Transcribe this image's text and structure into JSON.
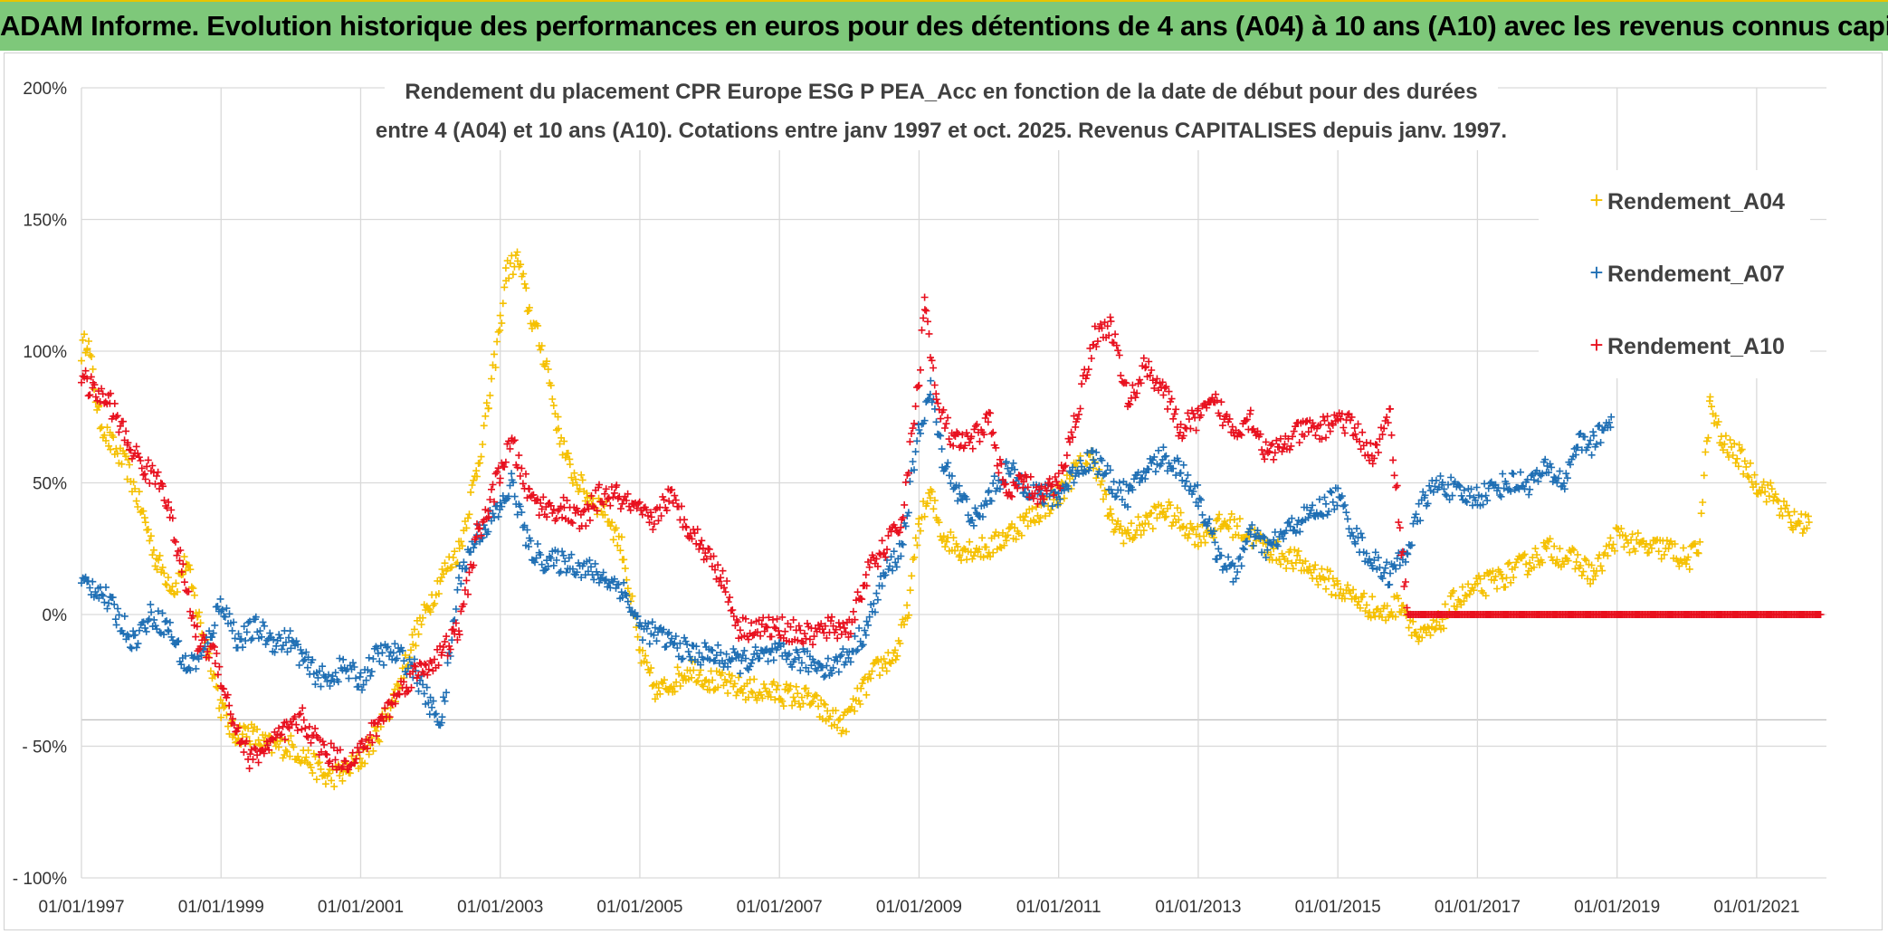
{
  "banner": {
    "title": "ADAM Informe. Evolution historique des performances en euros pour des détentions de 4 ans (A04) à 10 ans (A10) avec les revenus connus capitalisés"
  },
  "colors": {
    "banner_bg": "#7ec87a",
    "A04": "#f5c000",
    "A07": "#1f6fb4",
    "A10": "#e8101e",
    "grid": "#d9d9d9"
  },
  "chart_data": {
    "type": "scatter",
    "title_line1": "Rendement du placement CPR Europe ESG P PEA_Acc en fonction de la date de début pour des durées",
    "title_line2": "entre 4 (A04) et 10 ans (A10). Cotations entre janv 1997 et oct. 2025. Revenus CAPITALISES depuis janv. 1997.",
    "xlabel": "",
    "ylabel": "",
    "x_range": [
      "1997-01-01",
      "2022-01-01"
    ],
    "ylim": [
      -100,
      200
    ],
    "y_ticks": [
      "200%",
      "150%",
      "100%",
      "50%",
      "0%",
      "- 50%",
      "- 100%"
    ],
    "x_ticks": [
      "01/01/1997",
      "01/01/1999",
      "01/01/2001",
      "01/01/2003",
      "01/01/2005",
      "01/01/2007",
      "01/01/2009",
      "01/01/2011",
      "01/01/2013",
      "01/01/2015",
      "01/01/2017",
      "01/01/2019",
      "01/01/2021"
    ],
    "grid": true,
    "legend_position": "top-right",
    "marker": "+",
    "series": [
      {
        "name": "Rendement_A04",
        "color": "#f5c000",
        "points": [
          [
            "1997-01-01",
            100
          ],
          [
            "1997-02-01",
            105
          ],
          [
            "1997-04-01",
            75
          ],
          [
            "1997-06-01",
            65
          ],
          [
            "1997-09-01",
            55
          ],
          [
            "1997-12-01",
            35
          ],
          [
            "1998-02-01",
            20
          ],
          [
            "1998-05-01",
            10
          ],
          [
            "1998-07-01",
            20
          ],
          [
            "1998-09-01",
            0
          ],
          [
            "1998-11-01",
            -15
          ],
          [
            "1999-01-01",
            -35
          ],
          [
            "1999-03-01",
            -45
          ],
          [
            "1999-06-01",
            -45
          ],
          [
            "1999-09-01",
            -50
          ],
          [
            "2000-01-01",
            -50
          ],
          [
            "2000-04-01",
            -55
          ],
          [
            "2000-07-01",
            -62
          ],
          [
            "2000-10-01",
            -60
          ],
          [
            "2001-01-01",
            -55
          ],
          [
            "2001-04-01",
            -45
          ],
          [
            "2001-07-01",
            -30
          ],
          [
            "2001-10-01",
            -10
          ],
          [
            "2002-01-01",
            5
          ],
          [
            "2002-03-01",
            15
          ],
          [
            "2002-06-01",
            25
          ],
          [
            "2002-09-01",
            55
          ],
          [
            "2002-11-01",
            80
          ],
          [
            "2003-01-01",
            110
          ],
          [
            "2003-02-01",
            130
          ],
          [
            "2003-04-01",
            135
          ],
          [
            "2003-06-01",
            115
          ],
          [
            "2003-09-01",
            95
          ],
          [
            "2003-11-01",
            70
          ],
          [
            "2004-01-01",
            55
          ],
          [
            "2004-04-01",
            45
          ],
          [
            "2004-07-01",
            40
          ],
          [
            "2004-10-01",
            25
          ],
          [
            "2005-01-01",
            -15
          ],
          [
            "2005-04-01",
            -30
          ],
          [
            "2005-07-01",
            -25
          ],
          [
            "2005-10-01",
            -20
          ],
          [
            "2006-01-01",
            -25
          ],
          [
            "2006-06-01",
            -28
          ],
          [
            "2007-01-01",
            -30
          ],
          [
            "2007-06-01",
            -32
          ],
          [
            "2007-09-01",
            -38
          ],
          [
            "2007-12-01",
            -42
          ],
          [
            "2008-03-01",
            -30
          ],
          [
            "2008-06-01",
            -20
          ],
          [
            "2008-09-01",
            -15
          ],
          [
            "2008-11-01",
            0
          ],
          [
            "2009-01-01",
            35
          ],
          [
            "2009-03-01",
            45
          ],
          [
            "2009-05-01",
            30
          ],
          [
            "2009-08-01",
            25
          ],
          [
            "2010-01-01",
            25
          ],
          [
            "2010-04-01",
            30
          ],
          [
            "2010-07-01",
            35
          ],
          [
            "2010-10-01",
            40
          ],
          [
            "2011-01-01",
            45
          ],
          [
            "2011-04-01",
            55
          ],
          [
            "2011-07-01",
            60
          ],
          [
            "2011-10-01",
            35
          ],
          [
            "2012-01-01",
            30
          ],
          [
            "2012-04-01",
            35
          ],
          [
            "2012-07-01",
            40
          ],
          [
            "2012-10-01",
            35
          ],
          [
            "2013-01-01",
            30
          ],
          [
            "2013-06-01",
            35
          ],
          [
            "2013-10-01",
            30
          ],
          [
            "2014-01-01",
            25
          ],
          [
            "2014-06-01",
            20
          ],
          [
            "2014-10-01",
            15
          ],
          [
            "2015-01-01",
            10
          ],
          [
            "2015-05-01",
            5
          ],
          [
            "2015-09-01",
            0
          ],
          [
            "2015-12-01",
            5
          ],
          [
            "2016-03-01",
            -10
          ],
          [
            "2016-06-01",
            -5
          ],
          [
            "2016-09-01",
            5
          ],
          [
            "2017-01-01",
            10
          ],
          [
            "2017-06-01",
            15
          ],
          [
            "2017-10-01",
            20
          ],
          [
            "2018-01-01",
            25
          ],
          [
            "2018-06-01",
            20
          ],
          [
            "2018-09-01",
            15
          ],
          [
            "2019-01-01",
            30
          ],
          [
            "2019-06-01",
            25
          ],
          [
            "2019-10-01",
            25
          ],
          [
            "2020-01-01",
            20
          ],
          [
            "2020-03-01",
            25
          ],
          [
            "2020-05-01",
            80
          ],
          [
            "2020-07-01",
            65
          ],
          [
            "2020-10-01",
            60
          ],
          [
            "2021-01-01",
            50
          ],
          [
            "2021-04-01",
            45
          ],
          [
            "2021-07-01",
            35
          ],
          [
            "2021-10-01",
            35
          ]
        ]
      },
      {
        "name": "Rendement_A07",
        "color": "#1f6fb4",
        "points": [
          [
            "1997-01-01",
            12
          ],
          [
            "1997-04-01",
            10
          ],
          [
            "1997-07-01",
            0
          ],
          [
            "1997-10-01",
            -10
          ],
          [
            "1998-01-01",
            0
          ],
          [
            "1998-04-01",
            -5
          ],
          [
            "1998-07-01",
            -20
          ],
          [
            "1998-10-01",
            -15
          ],
          [
            "1999-01-01",
            5
          ],
          [
            "1999-04-01",
            -10
          ],
          [
            "1999-07-01",
            -5
          ],
          [
            "1999-10-01",
            -10
          ],
          [
            "2000-01-01",
            -10
          ],
          [
            "2000-04-01",
            -20
          ],
          [
            "2000-07-01",
            -25
          ],
          [
            "2000-10-01",
            -20
          ],
          [
            "2001-01-01",
            -25
          ],
          [
            "2001-04-01",
            -15
          ],
          [
            "2001-07-01",
            -15
          ],
          [
            "2001-10-01",
            -20
          ],
          [
            "2002-01-01",
            -35
          ],
          [
            "2002-03-01",
            -40
          ],
          [
            "2002-06-01",
            15
          ],
          [
            "2002-09-01",
            30
          ],
          [
            "2002-11-01",
            35
          ],
          [
            "2003-01-01",
            40
          ],
          [
            "2003-03-01",
            50
          ],
          [
            "2003-06-01",
            25
          ],
          [
            "2003-09-01",
            20
          ],
          [
            "2004-01-01",
            20
          ],
          [
            "2004-06-01",
            15
          ],
          [
            "2004-10-01",
            10
          ],
          [
            "2005-01-01",
            -5
          ],
          [
            "2005-06-01",
            -10
          ],
          [
            "2005-10-01",
            -15
          ],
          [
            "2006-01-01",
            -15
          ],
          [
            "2006-06-01",
            -18
          ],
          [
            "2007-01-01",
            -15
          ],
          [
            "2007-06-01",
            -18
          ],
          [
            "2007-10-01",
            -20
          ],
          [
            "2008-01-01",
            -15
          ],
          [
            "2008-04-01",
            -5
          ],
          [
            "2008-07-01",
            15
          ],
          [
            "2008-10-01",
            25
          ],
          [
            "2009-01-01",
            70
          ],
          [
            "2009-03-01",
            85
          ],
          [
            "2009-05-01",
            60
          ],
          [
            "2009-08-01",
            45
          ],
          [
            "2009-11-01",
            35
          ],
          [
            "2010-01-01",
            45
          ],
          [
            "2010-04-01",
            55
          ],
          [
            "2010-07-01",
            50
          ],
          [
            "2010-10-01",
            45
          ],
          [
            "2011-01-01",
            45
          ],
          [
            "2011-04-01",
            55
          ],
          [
            "2011-07-01",
            60
          ],
          [
            "2011-10-01",
            50
          ],
          [
            "2012-01-01",
            45
          ],
          [
            "2012-04-01",
            55
          ],
          [
            "2012-07-01",
            60
          ],
          [
            "2012-10-01",
            55
          ],
          [
            "2013-01-01",
            45
          ],
          [
            "2013-04-01",
            25
          ],
          [
            "2013-07-01",
            15
          ],
          [
            "2013-10-01",
            30
          ],
          [
            "2014-01-01",
            25
          ],
          [
            "2014-06-01",
            35
          ],
          [
            "2014-10-01",
            40
          ],
          [
            "2015-01-01",
            45
          ],
          [
            "2015-04-01",
            30
          ],
          [
            "2015-07-01",
            20
          ],
          [
            "2015-10-01",
            15
          ],
          [
            "2016-01-01",
            25
          ],
          [
            "2016-04-01",
            45
          ],
          [
            "2016-07-01",
            50
          ],
          [
            "2016-10-01",
            45
          ],
          [
            "2017-01-01",
            45
          ],
          [
            "2017-06-01",
            50
          ],
          [
            "2017-10-01",
            50
          ],
          [
            "2018-01-01",
            55
          ],
          [
            "2018-04-01",
            50
          ],
          [
            "2018-06-01",
            65
          ],
          [
            "2018-09-01",
            65
          ],
          [
            "2018-12-01",
            75
          ]
        ]
      },
      {
        "name": "Rendement_A10",
        "color": "#e8101e",
        "points": [
          [
            "1997-01-01",
            90
          ],
          [
            "1997-03-01",
            85
          ],
          [
            "1997-06-01",
            80
          ],
          [
            "1997-09-01",
            65
          ],
          [
            "1997-12-01",
            55
          ],
          [
            "1998-03-01",
            50
          ],
          [
            "1998-06-01",
            20
          ],
          [
            "1998-09-01",
            -10
          ],
          [
            "1998-12-01",
            -15
          ],
          [
            "1999-03-01",
            -40
          ],
          [
            "1999-06-01",
            -55
          ],
          [
            "1999-09-01",
            -50
          ],
          [
            "1999-12-01",
            -45
          ],
          [
            "2000-03-01",
            -40
          ],
          [
            "2000-06-01",
            -50
          ],
          [
            "2000-09-01",
            -55
          ],
          [
            "2000-12-01",
            -55
          ],
          [
            "2001-03-01",
            -45
          ],
          [
            "2001-06-01",
            -35
          ],
          [
            "2001-09-01",
            -25
          ],
          [
            "2001-12-01",
            -20
          ],
          [
            "2002-03-01",
            -15
          ],
          [
            "2002-06-01",
            -5
          ],
          [
            "2002-09-01",
            30
          ],
          [
            "2002-11-01",
            40
          ],
          [
            "2003-01-01",
            55
          ],
          [
            "2003-03-01",
            65
          ],
          [
            "2003-06-01",
            45
          ],
          [
            "2003-09-01",
            40
          ],
          [
            "2003-12-01",
            40
          ],
          [
            "2004-03-01",
            35
          ],
          [
            "2004-06-01",
            45
          ],
          [
            "2004-09-01",
            45
          ],
          [
            "2004-12-01",
            40
          ],
          [
            "2005-03-01",
            35
          ],
          [
            "2005-06-01",
            45
          ],
          [
            "2005-09-01",
            35
          ],
          [
            "2005-12-01",
            25
          ],
          [
            "2006-03-01",
            15
          ],
          [
            "2006-06-01",
            -5
          ],
          [
            "2006-09-01",
            -5
          ],
          [
            "2007-01-01",
            -5
          ],
          [
            "2007-06-01",
            -8
          ],
          [
            "2007-10-01",
            -5
          ],
          [
            "2008-01-01",
            -5
          ],
          [
            "2008-04-01",
            15
          ],
          [
            "2008-07-01",
            25
          ],
          [
            "2008-10-01",
            35
          ],
          [
            "2009-01-01",
            90
          ],
          [
            "2009-02-01",
            120
          ],
          [
            "2009-04-01",
            80
          ],
          [
            "2009-07-01",
            65
          ],
          [
            "2009-10-01",
            65
          ],
          [
            "2010-01-01",
            75
          ],
          [
            "2010-04-01",
            45
          ],
          [
            "2010-07-01",
            50
          ],
          [
            "2010-10-01",
            45
          ],
          [
            "2011-01-01",
            50
          ],
          [
            "2011-04-01",
            75
          ],
          [
            "2011-07-01",
            105
          ],
          [
            "2011-10-01",
            110
          ],
          [
            "2012-01-01",
            80
          ],
          [
            "2012-04-01",
            95
          ],
          [
            "2012-07-01",
            85
          ],
          [
            "2012-10-01",
            70
          ],
          [
            "2013-01-01",
            75
          ],
          [
            "2013-04-01",
            80
          ],
          [
            "2013-07-01",
            70
          ],
          [
            "2013-10-01",
            75
          ],
          [
            "2014-01-01",
            60
          ],
          [
            "2014-04-01",
            65
          ],
          [
            "2014-07-01",
            70
          ],
          [
            "2014-10-01",
            70
          ],
          [
            "2015-01-01",
            75
          ],
          [
            "2015-04-01",
            70
          ],
          [
            "2015-07-01",
            60
          ],
          [
            "2015-10-01",
            75
          ],
          [
            "2016-01-01",
            0
          ],
          [
            "2017-01-01",
            0
          ],
          [
            "2018-01-01",
            0
          ],
          [
            "2019-01-01",
            0
          ],
          [
            "2020-01-01",
            0
          ],
          [
            "2021-01-01",
            0
          ],
          [
            "2021-12-01",
            0
          ]
        ]
      }
    ]
  }
}
